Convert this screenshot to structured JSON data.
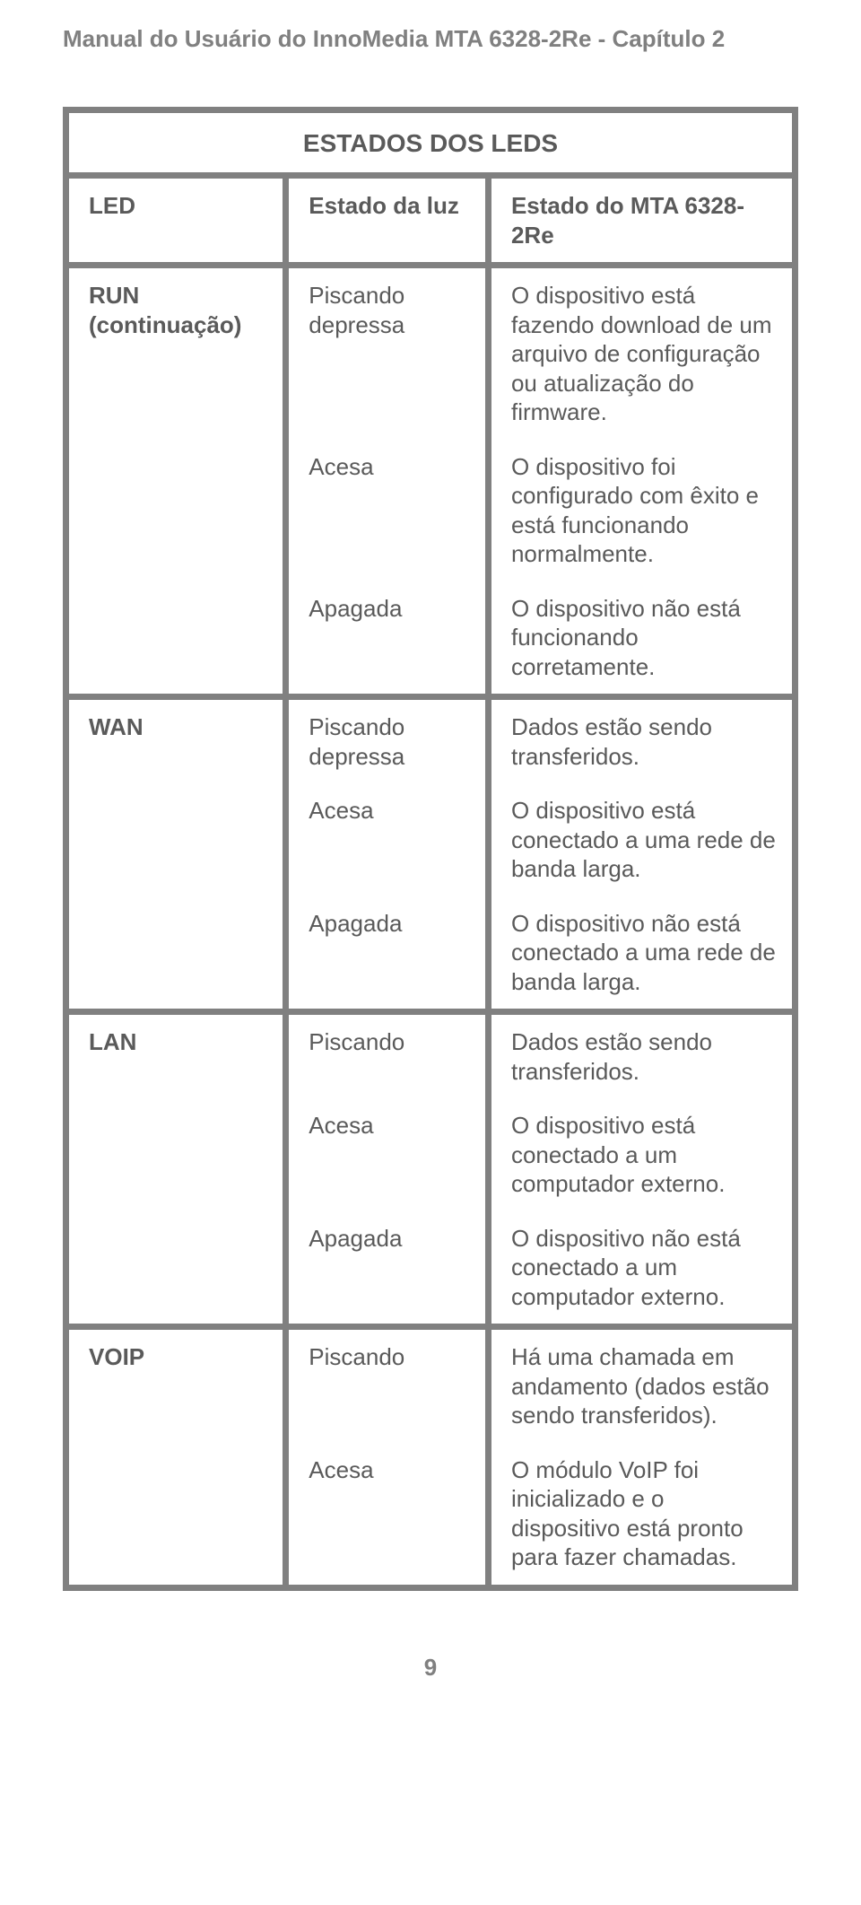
{
  "header": "Manual do Usuário do InnoMedia MTA 6328-2Re - Capítulo 2",
  "table": {
    "title": "ESTADOS DOS LEDS",
    "headers": {
      "c1": "LED",
      "c2": "Estado da luz",
      "c3": "Estado do MTA 6328-2Re"
    },
    "rows": [
      {
        "led": "RUN (continuação)",
        "state": "Piscando depressa",
        "desc": "O dispositivo está fazendo download de um arquivo de configuração ou atualização do firmware.",
        "sep": false
      },
      {
        "led": "",
        "state": "Acesa",
        "desc": "O dispositivo foi configurado com êxito e está funcionando normalmente.",
        "sep": false
      },
      {
        "led": "",
        "state": "Apagada",
        "desc": "O dispositivo não está funcionando corretamente.",
        "sep": true
      },
      {
        "led": "WAN",
        "state": "Piscando depressa",
        "desc": "Dados estão sendo transferidos.",
        "sep": false
      },
      {
        "led": "",
        "state": "Acesa",
        "desc": "O dispositivo está conectado a uma rede de banda larga.",
        "sep": false
      },
      {
        "led": "",
        "state": "Apagada",
        "desc": "O dispositivo não está conectado a uma rede de banda larga.",
        "sep": true
      },
      {
        "led": "LAN",
        "state": "Piscando",
        "desc": "Dados estão sendo transferidos.",
        "sep": false
      },
      {
        "led": "",
        "state": "Acesa",
        "desc": "O dispositivo está conectado a um computador externo.",
        "sep": false
      },
      {
        "led": "",
        "state": "Apagada",
        "desc": "O dispositivo não está conectado a um computador externo.",
        "sep": true
      },
      {
        "led": "VOIP",
        "state": "Piscando",
        "desc": "Há uma chamada em andamento (dados estão sendo transferidos).",
        "sep": false
      },
      {
        "led": "",
        "state": "Acesa",
        "desc": "O módulo VoIP foi inicializado e o dispositivo está pronto para fazer chamadas.",
        "sep": false
      }
    ]
  },
  "page_number": "9",
  "colors": {
    "border": "#808080",
    "text": "#5a5a5a",
    "background": "#ffffff"
  },
  "fonts": {
    "family": "Arial",
    "header_size_pt": 20,
    "body_size_pt": 20
  }
}
